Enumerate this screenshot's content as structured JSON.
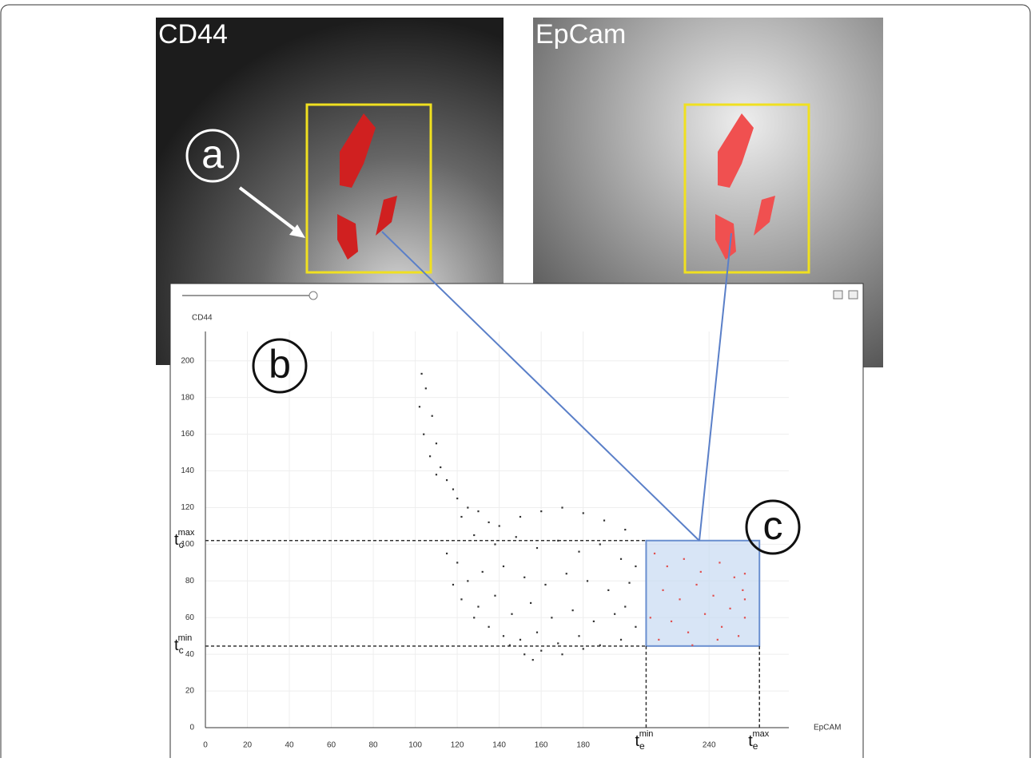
{
  "images": [
    {
      "label": "CD44"
    },
    {
      "label": "EpCam"
    }
  ],
  "callouts": [
    "a",
    "b",
    "c"
  ],
  "chart_data": {
    "type": "scatter",
    "x_label": "EpCAM",
    "y_label": "CD44",
    "xlim": [
      0,
      278
    ],
    "ylim": [
      0,
      216
    ],
    "xticks": [
      0,
      20,
      40,
      60,
      80,
      100,
      120,
      140,
      160,
      180,
      240
    ],
    "yticks": [
      0,
      20,
      40,
      60,
      80,
      100,
      120,
      140,
      160,
      180,
      200
    ],
    "grid": true,
    "series": [
      {
        "color": "#333333",
        "x": [
          103,
          105,
          102,
          108,
          104,
          110,
          107,
          112,
          115,
          110,
          118,
          120,
          125,
          130,
          122,
          135,
          140,
          150,
          160,
          170,
          180,
          190,
          200,
          128,
          138,
          148,
          158,
          168,
          178,
          188,
          198,
          205,
          120,
          125,
          132,
          142,
          152,
          162,
          172,
          182,
          192,
          202,
          122,
          130,
          138,
          146,
          155,
          165,
          175,
          185,
          195,
          205,
          135,
          142,
          150,
          158,
          168,
          178,
          188,
          198,
          145,
          152,
          156,
          160,
          170,
          180,
          128,
          118,
          115,
          200
        ],
        "values": [
          193,
          185,
          175,
          170,
          160,
          155,
          148,
          142,
          135,
          138,
          130,
          125,
          120,
          118,
          115,
          112,
          110,
          115,
          118,
          120,
          117,
          113,
          108,
          105,
          100,
          104,
          98,
          102,
          96,
          100,
          92,
          88,
          90,
          80,
          85,
          88,
          82,
          78,
          84,
          80,
          75,
          79,
          70,
          66,
          72,
          62,
          68,
          60,
          64,
          58,
          62,
          55,
          55,
          50,
          48,
          52,
          46,
          50,
          45,
          48,
          45,
          40,
          37,
          42,
          40,
          43,
          60,
          78,
          95,
          66
        ]
      },
      {
        "color": "#e05050",
        "x": [
          214,
          220,
          228,
          236,
          245,
          252,
          218,
          226,
          234,
          242,
          250,
          256,
          212,
          222,
          230,
          238,
          246,
          254,
          216,
          232,
          244,
          257,
          257,
          257
        ],
        "values": [
          95,
          88,
          92,
          85,
          90,
          82,
          75,
          70,
          78,
          72,
          65,
          75,
          60,
          58,
          52,
          62,
          55,
          50,
          48,
          45,
          48,
          84,
          70,
          60
        ]
      }
    ],
    "selection": {
      "x": [
        210,
        264
      ],
      "y": [
        44.5,
        102
      ]
    },
    "thresholds": [
      {
        "axis": "x",
        "value": 210,
        "base": "t",
        "sub": "e",
        "sup": "min"
      },
      {
        "axis": "x",
        "value": 264,
        "base": "t",
        "sub": "e",
        "sup": "max"
      },
      {
        "axis": "y",
        "value": 102,
        "base": "t",
        "sub": "c",
        "sup": "max"
      },
      {
        "axis": "y",
        "value": 44.5,
        "base": "t",
        "sub": "c",
        "sup": "min"
      }
    ]
  }
}
